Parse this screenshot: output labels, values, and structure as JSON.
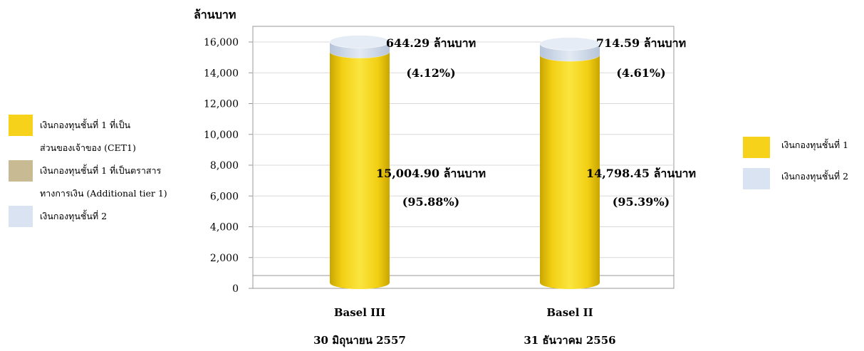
{
  "colors": {
    "cet1": "#F6D21B",
    "additional_tier1": "#C8BB93",
    "tier2": "#D9E3F1",
    "axis": "#999999",
    "grid": "#d9d9d9"
  },
  "legend_left": {
    "items": [
      {
        "line1": "เงินกองทุนชั้นที่ 1 ที่เป็น",
        "line2": "ส่วนของเจ้าของ (CET1)",
        "color_key": "cet1"
      },
      {
        "line1": "เงินกองทุนชั้นที่ 1 ที่เป็นตราสาร",
        "line2": "ทางการเงิน (Additional tier 1)",
        "color_key": "additional_tier1"
      },
      {
        "line1": "เงินกองทุนชั้นที่ 2",
        "line2": "",
        "color_key": "tier2"
      }
    ]
  },
  "legend_right": {
    "items": [
      {
        "label": "เงินกองทุนชั้นที่ 1",
        "color_key": "cet1"
      },
      {
        "label": "เงินกองทุนชั้นที่ 2",
        "color_key": "tier2"
      }
    ]
  },
  "chart_data": {
    "type": "bar",
    "stacked": true,
    "ylabel": "ล้านบาท",
    "ylim": [
      0,
      16000
    ],
    "yticks": [
      0,
      2000,
      4000,
      6000,
      8000,
      10000,
      12000,
      14000,
      16000
    ],
    "ytick_labels": [
      "0",
      "2,000",
      "4,000",
      "6,000",
      "8,000",
      "10,000",
      "12,000",
      "14,000",
      "16,000"
    ],
    "grid": true,
    "categories": [
      {
        "line1": "Basel III",
        "line2": "30 มิถุนายน 2557"
      },
      {
        "line1": "Basel II",
        "line2": "31 ธันวาคม 2556"
      }
    ],
    "series": [
      {
        "color_key": "cet1",
        "values": [
          15004.9,
          14798.45
        ],
        "value_labels": [
          "15,004.90 ล้านบาท",
          "14,798.45 ล้านบาท"
        ],
        "pct_labels": [
          "(95.88%)",
          "(95.39%)"
        ]
      },
      {
        "color_key": "tier2",
        "values": [
          644.29,
          714.59
        ],
        "value_labels": [
          "644.29 ล้านบาท",
          "714.59 ล้านบาท"
        ],
        "pct_labels": [
          "(4.12%)",
          "(4.61%)"
        ]
      }
    ]
  }
}
